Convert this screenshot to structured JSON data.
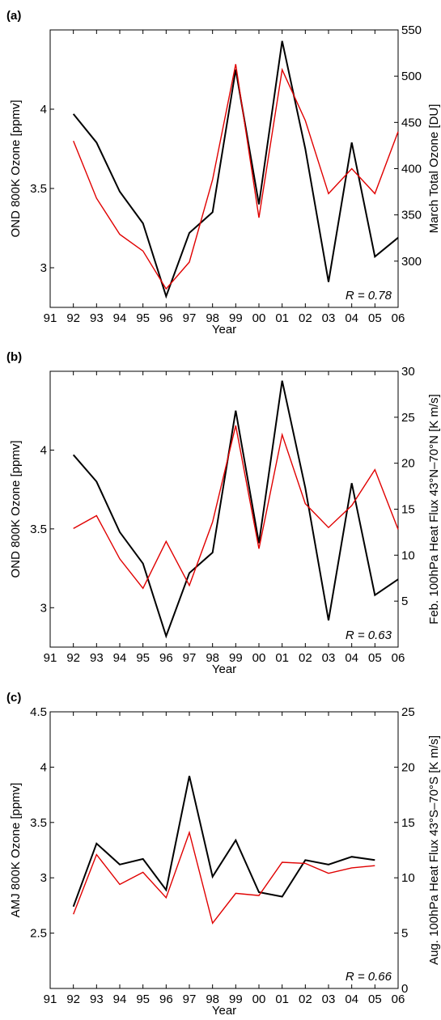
{
  "chart_data": [
    {
      "type": "line",
      "panel_label": "(a)",
      "x_ticks": [
        "91",
        "92",
        "93",
        "94",
        "95",
        "96",
        "97",
        "98",
        "99",
        "00",
        "01",
        "02",
        "03",
        "04",
        "05",
        "06"
      ],
      "xlabel": "Year",
      "ylabel_left": "OND 800K Ozone [ppmv]",
      "ylabel_right": "March Total Ozone [DU]",
      "ylim_left": [
        2.75,
        4.5
      ],
      "ylim_right": [
        250,
        550
      ],
      "yticks_left": [
        "3",
        "3.5",
        "4"
      ],
      "yticks_right": [
        "300",
        "350",
        "400",
        "450",
        "500",
        "550"
      ],
      "annotation": "R = 0.78",
      "series": [
        {
          "color": "#000000",
          "axis": "left",
          "x": [
            92,
            93,
            94,
            95,
            96,
            97,
            98,
            99,
            100,
            101,
            102,
            103,
            104,
            105,
            106
          ],
          "values": [
            3.97,
            3.79,
            3.48,
            3.28,
            2.82,
            3.22,
            3.35,
            4.25,
            3.4,
            4.43,
            3.75,
            2.91,
            3.79,
            3.07,
            3.19
          ]
        },
        {
          "color": "#e00000",
          "axis": "right",
          "x": [
            92,
            93,
            94,
            95,
            96,
            97,
            98,
            99,
            100,
            101,
            102,
            103,
            104,
            105,
            106
          ],
          "values": [
            430,
            368,
            329,
            311,
            270,
            299,
            388,
            513,
            347,
            507,
            452,
            373,
            400,
            373,
            440
          ]
        }
      ]
    },
    {
      "type": "line",
      "panel_label": "(b)",
      "x_ticks": [
        "91",
        "92",
        "93",
        "94",
        "95",
        "96",
        "97",
        "98",
        "99",
        "00",
        "01",
        "02",
        "03",
        "04",
        "05",
        "06"
      ],
      "xlabel": "Year",
      "ylabel_left": "OND 800K Ozone [ppmv]",
      "ylabel_right": "Feb. 100hPa Heat Flux 43°N–70°N [K m/s]",
      "ylim_left": [
        2.75,
        4.5
      ],
      "ylim_right": [
        0,
        30
      ],
      "yticks_left": [
        "3",
        "3.5",
        "4"
      ],
      "yticks_right": [
        "5",
        "10",
        "15",
        "20",
        "25",
        "30"
      ],
      "annotation": "R = 0.63",
      "series": [
        {
          "color": "#000000",
          "axis": "left",
          "x": [
            92,
            93,
            94,
            95,
            96,
            97,
            98,
            99,
            100,
            101,
            102,
            103,
            104,
            105,
            106
          ],
          "values": [
            3.97,
            3.8,
            3.48,
            3.28,
            2.82,
            3.22,
            3.35,
            4.25,
            3.41,
            4.44,
            3.76,
            2.92,
            3.79,
            3.08,
            3.18
          ]
        },
        {
          "color": "#e00000",
          "axis": "right",
          "x": [
            92,
            93,
            94,
            95,
            96,
            97,
            98,
            99,
            100,
            101,
            102,
            103,
            104,
            105,
            106
          ],
          "values": [
            12.9,
            14.3,
            9.6,
            6.4,
            11.5,
            6.7,
            13.6,
            24.1,
            10.7,
            23.1,
            15.6,
            13.0,
            15.4,
            19.3,
            12.8
          ]
        }
      ]
    },
    {
      "type": "line",
      "panel_label": "(c)",
      "x_ticks": [
        "91",
        "92",
        "93",
        "94",
        "95",
        "96",
        "97",
        "98",
        "99",
        "00",
        "01",
        "02",
        "03",
        "04",
        "05",
        "06"
      ],
      "xlabel": "Year",
      "ylabel_left": "AMJ 800K Ozone [ppmv]",
      "ylabel_right": "Aug. 100hPa Heat Flux 43°S–70°S [K m/s]",
      "ylim_left": [
        2,
        4.5
      ],
      "ylim_right": [
        0,
        25
      ],
      "yticks_left": [
        "2.5",
        "3",
        "3.5",
        "4",
        "4.5"
      ],
      "yticks_right": [
        "0",
        "5",
        "10",
        "15",
        "20",
        "25"
      ],
      "annotation": "R = 0.66",
      "series": [
        {
          "color": "#000000",
          "axis": "left",
          "x": [
            92,
            93,
            94,
            95,
            96,
            97,
            98,
            99,
            100,
            101,
            102,
            103,
            104,
            105
          ],
          "values": [
            2.74,
            3.31,
            3.12,
            3.17,
            2.89,
            3.92,
            3.01,
            3.34,
            2.87,
            2.83,
            3.16,
            3.12,
            3.19,
            3.16
          ]
        },
        {
          "color": "#e00000",
          "axis": "right",
          "x": [
            92,
            93,
            94,
            95,
            96,
            97,
            98,
            99,
            100,
            101,
            102,
            103,
            104,
            105
          ],
          "values": [
            6.7,
            12.1,
            9.4,
            10.5,
            8.2,
            14.1,
            5.9,
            8.6,
            8.4,
            11.4,
            11.3,
            10.4,
            10.9,
            11.1
          ]
        }
      ]
    }
  ]
}
